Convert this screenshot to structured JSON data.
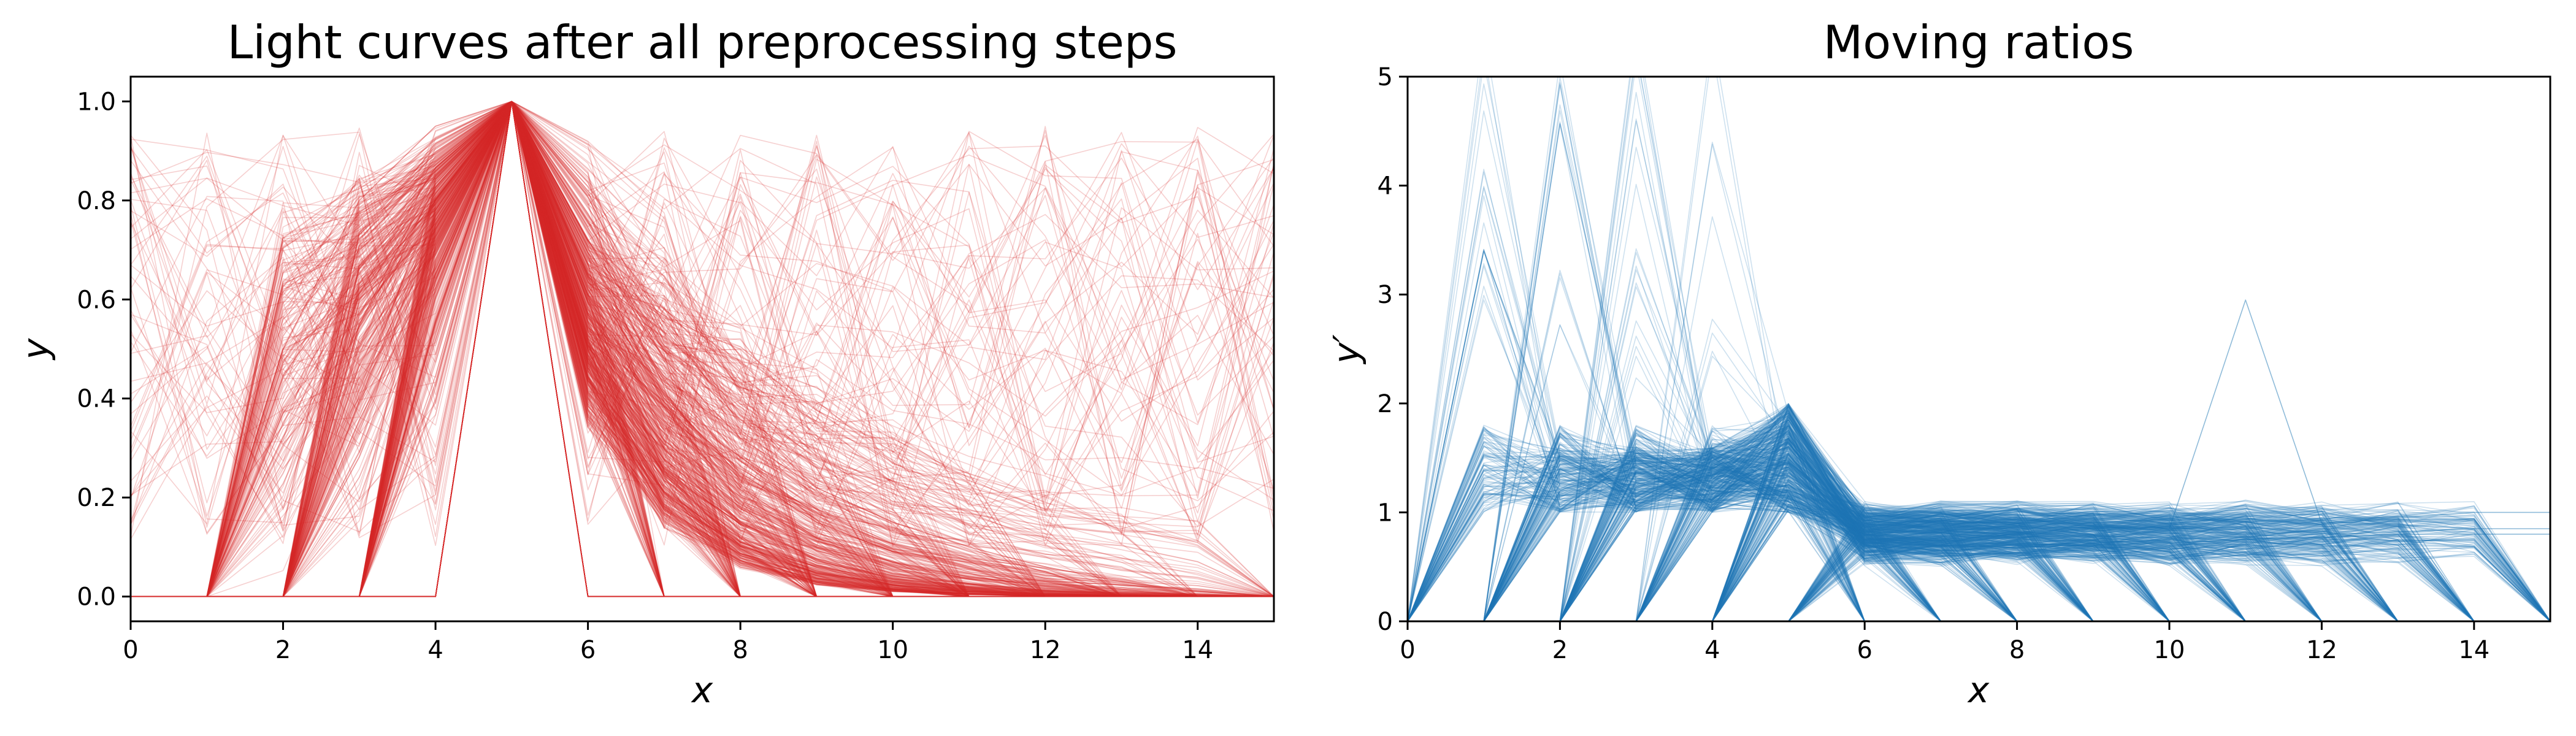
{
  "chart_data": [
    {
      "type": "line",
      "title": "Light curves after all preprocessing steps",
      "xlabel": "x",
      "ylabel": "y",
      "xlim": [
        0,
        15
      ],
      "ylim": [
        -0.05,
        1.05
      ],
      "xticks": [
        "0",
        "2",
        "4",
        "6",
        "8",
        "10",
        "12",
        "14"
      ],
      "yticks": [
        "0.0",
        "0.2",
        "0.4",
        "0.6",
        "0.8",
        "1.0"
      ],
      "grid": false,
      "legend": "none",
      "color": "#d62728",
      "line_opacity": 0.25,
      "n_curves": 700,
      "x": [
        0,
        1,
        2,
        3,
        4,
        5,
        6,
        7,
        8,
        9,
        10,
        11,
        12,
        13,
        14,
        15
      ],
      "peak_x": 5,
      "peak_y": 1.0,
      "start_points_x": [
        1,
        2,
        3,
        4
      ],
      "end_points_x": [
        6,
        7,
        8,
        9,
        10,
        11,
        12,
        13,
        14,
        15
      ],
      "representative_series": [
        {
          "values": [
            0,
            0,
            0,
            0.55,
            0.85,
            1.0,
            0.72,
            0.48,
            0.32,
            0.22,
            0.15,
            0.1,
            0.06,
            0.03,
            0.01,
            0
          ]
        },
        {
          "values": [
            0,
            0,
            0.5,
            0.8,
            0.95,
            1.0,
            0.65,
            0.4,
            0.25,
            0.15,
            0.09,
            0.05,
            0.03,
            0,
            0,
            0
          ]
        },
        {
          "values": [
            0,
            0,
            0,
            0,
            0,
            1.0,
            0,
            0,
            0,
            0,
            0,
            0,
            0,
            0,
            0,
            0
          ]
        }
      ]
    },
    {
      "type": "line",
      "title": "Moving ratios",
      "xlabel": "x",
      "ylabel": "y′",
      "xlim": [
        0,
        15
      ],
      "ylim": [
        0,
        5
      ],
      "xticks": [
        "0",
        "2",
        "4",
        "6",
        "8",
        "10",
        "12",
        "14"
      ],
      "yticks": [
        "0",
        "1",
        "2",
        "3",
        "4",
        "5"
      ],
      "grid": false,
      "legend": "none",
      "color": "#1f77b4",
      "line_opacity": 0.25,
      "n_curves": 700,
      "x": [
        0,
        1,
        2,
        3,
        4,
        5,
        6,
        7,
        8,
        9,
        10,
        11,
        12,
        13,
        14,
        15
      ],
      "representative_series": [
        {
          "values": [
            0,
            0,
            0,
            1.6,
            1.2,
            1.1,
            0.75,
            0.68,
            0.7,
            0.72,
            0.75,
            0.78,
            0.8,
            0.82,
            0.85,
            0.85
          ]
        },
        {
          "values": [
            0,
            0,
            1.3,
            1.25,
            1.2,
            1.15,
            0.7,
            0.65,
            0.68,
            0.7,
            0.72,
            0.75,
            0.77,
            0.8,
            0.8,
            0.8
          ]
        },
        {
          "values": [
            0,
            3.4,
            1.5,
            1.2,
            1.1,
            1.0,
            0.8,
            0.75,
            0.8,
            0.85,
            0.85,
            2.95,
            0.9,
            0.95,
            1.0,
            1.0
          ]
        }
      ]
    }
  ]
}
